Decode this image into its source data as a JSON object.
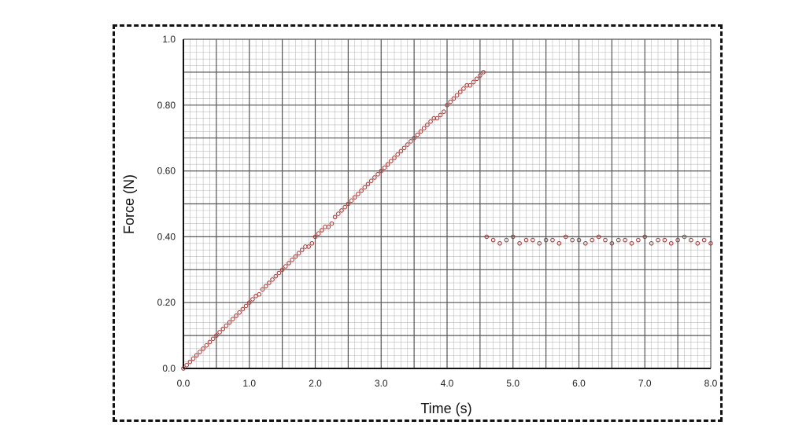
{
  "chart_data": {
    "type": "scatter",
    "title": "",
    "xlabel": "Time (s)",
    "ylabel": "Force (N)",
    "xlim": [
      0,
      8
    ],
    "ylim": [
      0,
      1
    ],
    "x_ticks": [
      "0.0",
      "1.0",
      "2.0",
      "3.0",
      "4.0",
      "5.0",
      "6.0",
      "7.0",
      "8.0"
    ],
    "y_ticks": [
      "0.0",
      "0.20",
      "0.40",
      "0.60",
      "0.80",
      "1.0"
    ],
    "grid": true,
    "legend": "none",
    "marker_color": "#a23030",
    "grid_major_color": "#555555",
    "grid_minor_color": "#bbbbbb",
    "series": [
      {
        "values_x": [
          0.0,
          0.05,
          0.1,
          0.15,
          0.2,
          0.25,
          0.3,
          0.35,
          0.4,
          0.45,
          0.5,
          0.55,
          0.6,
          0.65,
          0.7,
          0.75,
          0.8,
          0.85,
          0.9,
          0.95,
          1.0,
          1.05,
          1.1,
          1.15,
          1.2,
          1.25,
          1.3,
          1.35,
          1.4,
          1.45,
          1.5,
          1.55,
          1.6,
          1.65,
          1.7,
          1.75,
          1.8,
          1.85,
          1.9,
          1.95,
          2.0,
          2.05,
          2.1,
          2.15,
          2.2,
          2.25,
          2.3,
          2.35,
          2.4,
          2.45,
          2.5,
          2.55,
          2.6,
          2.65,
          2.7,
          2.75,
          2.8,
          2.85,
          2.9,
          2.95,
          3.0,
          3.05,
          3.1,
          3.15,
          3.2,
          3.25,
          3.3,
          3.35,
          3.4,
          3.45,
          3.5,
          3.55,
          3.6,
          3.65,
          3.7,
          3.75,
          3.8,
          3.85,
          3.9,
          3.95,
          4.0,
          4.05,
          4.1,
          4.15,
          4.2,
          4.25,
          4.3,
          4.35,
          4.4,
          4.45,
          4.5,
          4.55,
          4.6,
          4.7,
          4.8,
          4.9,
          5.0,
          5.1,
          5.2,
          5.3,
          5.4,
          5.5,
          5.6,
          5.7,
          5.8,
          5.9,
          6.0,
          6.1,
          6.2,
          6.3,
          6.4,
          6.5,
          6.6,
          6.7,
          6.8,
          6.9,
          7.0,
          7.1,
          7.2,
          7.3,
          7.4,
          7.5,
          7.6,
          7.7,
          7.8,
          7.9,
          8.0
        ],
        "values_y": [
          0.0,
          0.01,
          0.02,
          0.03,
          0.04,
          0.05,
          0.06,
          0.07,
          0.08,
          0.09,
          0.1,
          0.11,
          0.12,
          0.13,
          0.14,
          0.15,
          0.16,
          0.17,
          0.18,
          0.19,
          0.2,
          0.21,
          0.22,
          0.225,
          0.24,
          0.25,
          0.26,
          0.27,
          0.28,
          0.29,
          0.3,
          0.31,
          0.32,
          0.33,
          0.34,
          0.35,
          0.36,
          0.37,
          0.37,
          0.38,
          0.4,
          0.41,
          0.42,
          0.43,
          0.43,
          0.44,
          0.46,
          0.47,
          0.48,
          0.49,
          0.5,
          0.51,
          0.52,
          0.53,
          0.54,
          0.55,
          0.56,
          0.57,
          0.58,
          0.59,
          0.6,
          0.61,
          0.62,
          0.63,
          0.64,
          0.65,
          0.66,
          0.67,
          0.68,
          0.69,
          0.7,
          0.71,
          0.72,
          0.73,
          0.74,
          0.75,
          0.76,
          0.76,
          0.77,
          0.78,
          0.8,
          0.81,
          0.82,
          0.83,
          0.84,
          0.85,
          0.86,
          0.86,
          0.87,
          0.88,
          0.89,
          0.9,
          0.4,
          0.39,
          0.38,
          0.39,
          0.4,
          0.38,
          0.39,
          0.39,
          0.38,
          0.39,
          0.39,
          0.38,
          0.4,
          0.39,
          0.39,
          0.38,
          0.39,
          0.4,
          0.39,
          0.38,
          0.39,
          0.39,
          0.38,
          0.39,
          0.4,
          0.38,
          0.39,
          0.39,
          0.38,
          0.39,
          0.4,
          0.39,
          0.38,
          0.39,
          0.38
        ]
      }
    ]
  }
}
